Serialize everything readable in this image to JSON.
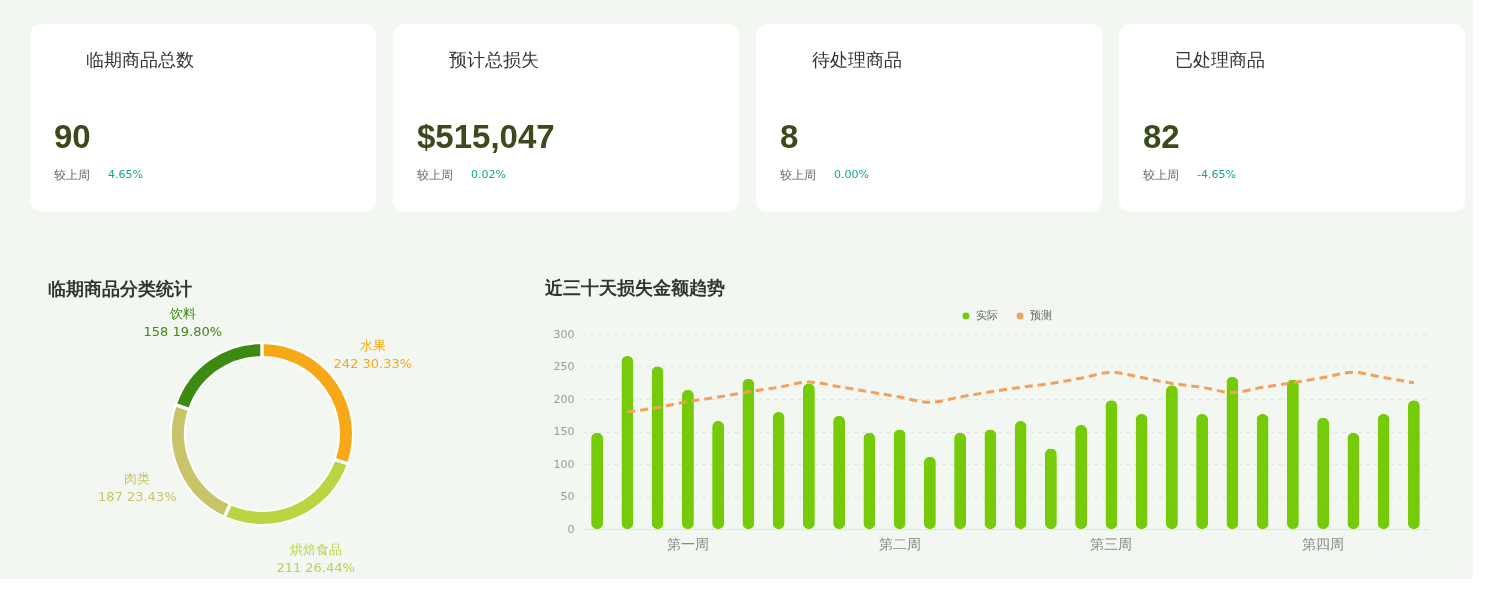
{
  "chart_data": [
    {
      "type": "other",
      "title": "临期商品总数",
      "annotations": [
        "90",
        "较上周",
        "4.65%"
      ]
    },
    {
      "type": "other",
      "title": "预计总损失",
      "annotations": [
        "$515,047",
        "较上周",
        "0.02%"
      ]
    },
    {
      "type": "other",
      "title": "待处理商品",
      "annotations": [
        "8",
        "较上周",
        "0.00%"
      ]
    },
    {
      "type": "other",
      "title": "已处理商品",
      "annotations": [
        "82",
        "较上周",
        "-4.65%"
      ]
    },
    {
      "type": "donut",
      "title": "临期商品分类统计",
      "categories": [
        "水果",
        "烘焙食品",
        "肉类",
        "饮料"
      ],
      "values": [
        242,
        211,
        187,
        158
      ],
      "colors": [
        "#f6a817",
        "#b6d742",
        "#c8c46a",
        "#3d8a12"
      ],
      "value_labels": [
        "242 30.33%",
        "211 26.44%",
        "187 23.43%",
        "158 19.80%"
      ]
    },
    {
      "type": "bar",
      "title": "近三十天损失金额趋势",
      "categories": [
        null,
        null,
        null,
        "第一周",
        null,
        null,
        null,
        null,
        null,
        null,
        "第二周",
        null,
        null,
        null,
        null,
        null,
        null,
        "第三周",
        null,
        null,
        null,
        null,
        null,
        null,
        "第四周",
        null,
        null,
        null
      ],
      "series": [
        {
          "name": "实际",
          "type": "bar",
          "color": "#76cb08",
          "values": [
            148,
            266,
            250,
            214,
            166,
            231,
            180,
            224,
            174,
            148,
            153,
            111,
            148,
            153,
            166,
            124,
            160,
            198,
            177,
            221,
            177,
            234,
            177,
            230,
            171,
            148,
            177,
            198
          ]
        },
        {
          "name": "预测",
          "type": "line",
          "color": "#f5a05a",
          "line_style": "dashed",
          "values": [
            null,
            180,
            187,
            196,
            203,
            211,
            218,
            226,
            219,
            211,
            203,
            195,
            203,
            211,
            218,
            224,
            232,
            241,
            233,
            224,
            218,
            210,
            218,
            225,
            233,
            241,
            233,
            225
          ]
        }
      ],
      "ylim": [
        0,
        300
      ],
      "yticks": [
        0,
        50,
        100,
        150,
        200,
        250,
        300
      ],
      "grid": "y",
      "legend": "top"
    }
  ]
}
